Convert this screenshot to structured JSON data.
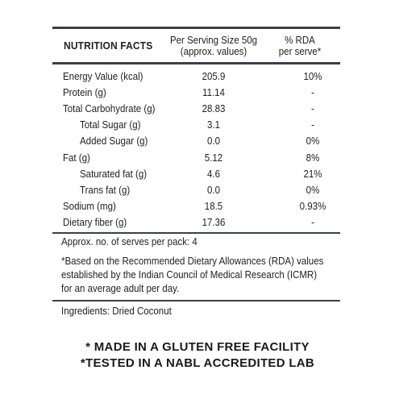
{
  "header": {
    "title": "NUTRITION FACTS",
    "col1_line1": "Per Serving Size 50g",
    "col1_line2": "(approx. values)",
    "col2_line1": "% RDA",
    "col2_line2": "per serve*"
  },
  "rows": [
    {
      "label": "Energy Value (kcal)",
      "value": "205.9",
      "rda": "10%",
      "indent": false
    },
    {
      "label": "Protein (g)",
      "value": "11.14",
      "rda": "-",
      "indent": false
    },
    {
      "label": "Total Carbohydrate (g)",
      "value": "28.83",
      "rda": "-",
      "indent": false
    },
    {
      "label": "Total Sugar (g)",
      "value": "3.1",
      "rda": "-",
      "indent": true
    },
    {
      "label": "Added Sugar (g)",
      "value": "0.0",
      "rda": "0%",
      "indent": true
    },
    {
      "label": "Fat (g)",
      "value": "5.12",
      "rda": "8%",
      "indent": false
    },
    {
      "label": "Saturated fat (g)",
      "value": "4.6",
      "rda": "21%",
      "indent": true
    },
    {
      "label": "Trans fat (g)",
      "value": "0.0",
      "rda": "0%",
      "indent": true
    },
    {
      "label": "Sodium (mg)",
      "value": "18.5",
      "rda": "0.93%",
      "indent": false
    },
    {
      "label": "Dietary fiber (g)",
      "value": "17.36",
      "rda": "-",
      "indent": false
    }
  ],
  "serves_note": "Approx. no. of serves per pack: 4",
  "rda_note_lines": [
    "*Based on the Recommended Dietary Allowances (RDA) values",
    "established by the Indian Council of Medical Research (ICMR)",
    "for an average adult per day."
  ],
  "ingredients": "Ingredients: Dried Coconut",
  "notices": [
    "* MADE IN A GLUTEN FREE FACILITY",
    "*TESTED IN A NABL ACCREDITED LAB"
  ]
}
